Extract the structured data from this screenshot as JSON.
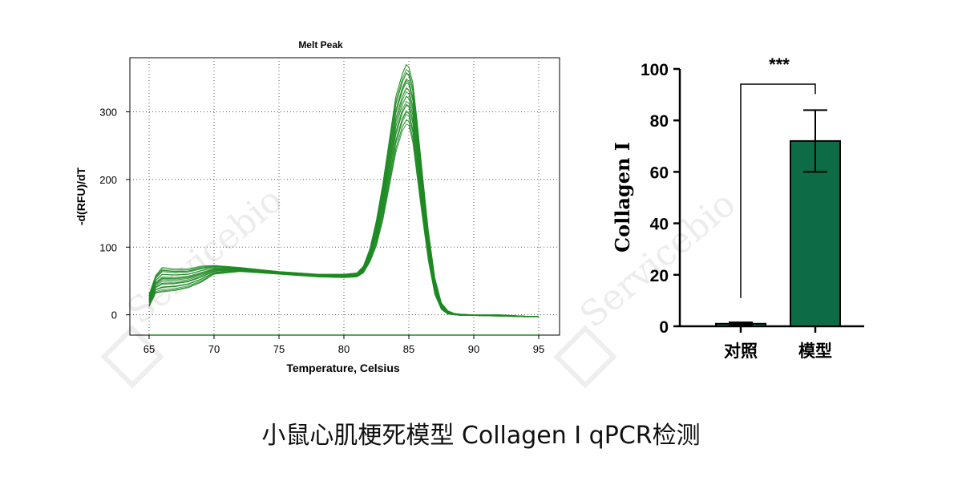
{
  "caption": "小鼠心肌梗死模型 Collagen I qPCR检测",
  "watermark": "Servicebio",
  "colors": {
    "melt_line": "#1e8a22",
    "bar_fill": "#0d6b45",
    "axis": "#000000"
  },
  "chart_data": [
    {
      "type": "line",
      "title": "Melt Peak",
      "xlabel": "Temperature, Celsius",
      "ylabel": "-d(RFU)/dT",
      "xlim": [
        65,
        95
      ],
      "ylim": [
        -30,
        380
      ],
      "xticks": [
        "65",
        "70",
        "75",
        "80",
        "85",
        "90",
        "95"
      ],
      "yticks": [
        "0",
        "100",
        "200",
        "300"
      ],
      "grid": true,
      "envelope_x": [
        65,
        65.5,
        66,
        67,
        68,
        69,
        70,
        72,
        75,
        78,
        80,
        81,
        81.5,
        82,
        82.5,
        83,
        83.5,
        84,
        84.5,
        84.8,
        85,
        85.3,
        85.6,
        86,
        86.5,
        87,
        87.5,
        88,
        88.5,
        89,
        90,
        92,
        94,
        95
      ],
      "envelope_low": [
        12,
        32,
        34,
        36,
        40,
        48,
        60,
        64,
        60,
        56,
        55,
        56,
        62,
        78,
        102,
        140,
        190,
        240,
        272,
        282,
        280,
        255,
        210,
        150,
        80,
        30,
        8,
        1,
        0,
        -1,
        -1,
        -2,
        -3,
        -3
      ],
      "envelope_high": [
        30,
        58,
        70,
        68,
        68,
        72,
        73,
        70,
        64,
        60,
        60,
        62,
        72,
        98,
        140,
        195,
        260,
        325,
        358,
        372,
        368,
        345,
        295,
        218,
        125,
        55,
        18,
        6,
        2,
        1,
        0,
        0,
        -2,
        -2
      ],
      "baseline": -30
    },
    {
      "type": "bar",
      "categories": [
        "对照",
        "模型"
      ],
      "values": [
        1,
        72
      ],
      "error": [
        0.5,
        12
      ],
      "ylabel": "Collagen I",
      "ylim": [
        0,
        100
      ],
      "yticks": [
        "0",
        "20",
        "40",
        "60",
        "80",
        "100"
      ],
      "significance": "***"
    }
  ]
}
